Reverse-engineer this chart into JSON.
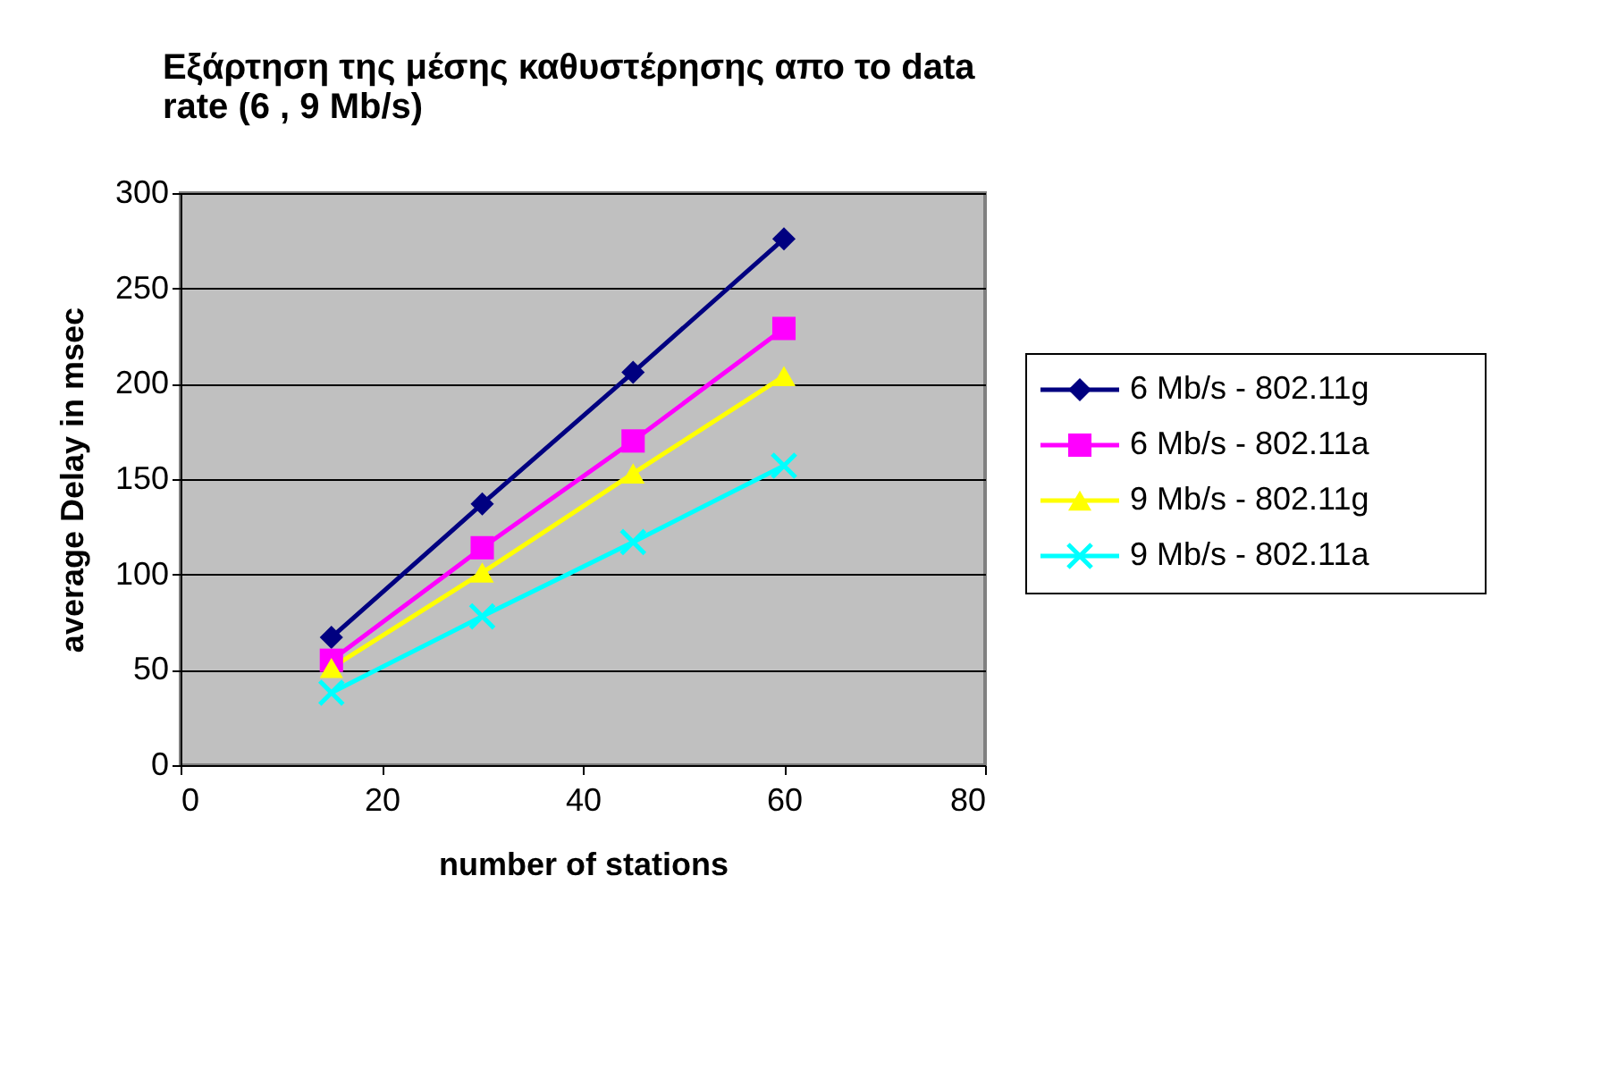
{
  "chart_data": {
    "type": "line",
    "title": "Εξάρτηση της μέσης καθυστέρησης  απο το data rate (6 , 9 Mb/s)",
    "xlabel": "number of stations",
    "ylabel": "average Delay in msec",
    "x": [
      15,
      30,
      45,
      60
    ],
    "series": [
      {
        "name": "6 Mb/s - 802.11g",
        "color": "#000080",
        "marker": "diamond",
        "values": [
          67,
          137,
          206,
          276
        ]
      },
      {
        "name": "6 Mb/s - 802.11a",
        "color": "#ff00ff",
        "marker": "square",
        "values": [
          55,
          114,
          170,
          229
        ]
      },
      {
        "name": "9 Mb/s - 802.11g",
        "color": "#ffff00",
        "marker": "triangle",
        "values": [
          51,
          101,
          153,
          204
        ]
      },
      {
        "name": "9 Mb/s - 802.11a",
        "color": "#00ffff",
        "marker": "cross",
        "values": [
          38,
          78,
          117,
          157
        ]
      }
    ],
    "xlim": [
      0,
      80
    ],
    "xticks": [
      0,
      20,
      40,
      60,
      80
    ],
    "ylim": [
      0,
      300
    ],
    "yticks": [
      0,
      50,
      100,
      150,
      200,
      250,
      300
    ],
    "grid": "y",
    "legend": "right",
    "line_style": "solid"
  }
}
